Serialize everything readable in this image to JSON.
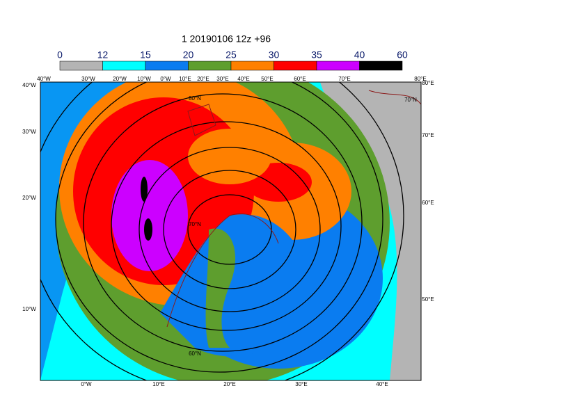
{
  "title": "1 20190106 12z +96",
  "colorbar": {
    "bounds": [
      0,
      12,
      15,
      20,
      25,
      30,
      35,
      40,
      60
    ],
    "colors": [
      "#b4b4b4",
      "#00ffff",
      "#0a7cf0",
      "#5e9e2e",
      "#ff8000",
      "#ff0000",
      "#cc00ff",
      "#000000"
    ]
  },
  "map_labels": {
    "top": [
      "40°W",
      "30°W",
      "20°W",
      "10°W",
      "0°W",
      "10°E",
      "20°E",
      "30°E",
      "40°E",
      "50°E",
      "60°E",
      "70°E",
      "80°E"
    ],
    "left": [
      "40°W",
      "30°W",
      "20°W",
      "10°W"
    ],
    "right": [
      "80°E",
      "70°E",
      "60°E",
      "50°E"
    ],
    "bottom": [
      "0°W",
      "10°E",
      "20°E",
      "30°E",
      "40°E"
    ],
    "latitudes": [
      "80°N",
      "70°N",
      "60°N",
      "70°N"
    ]
  }
}
